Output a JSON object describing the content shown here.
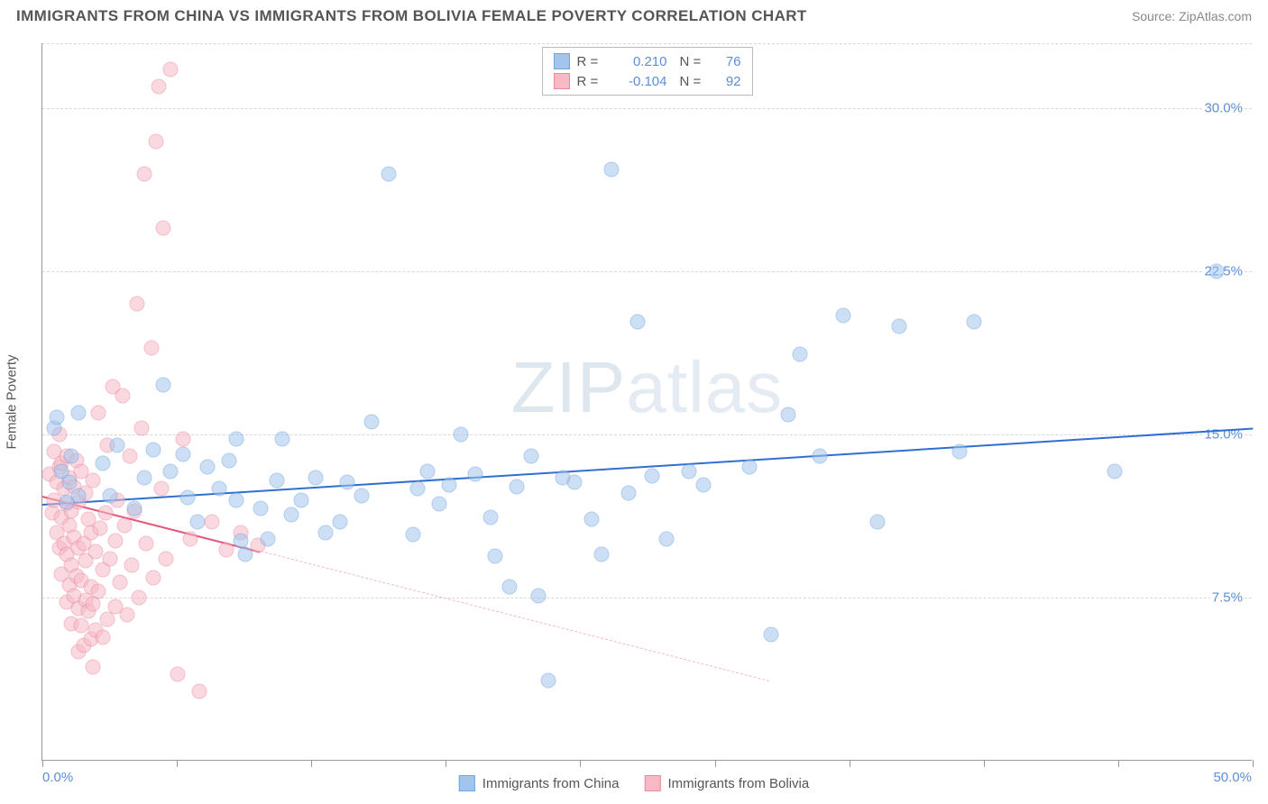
{
  "header": {
    "title": "IMMIGRANTS FROM CHINA VS IMMIGRANTS FROM BOLIVIA FEMALE POVERTY CORRELATION CHART",
    "source": "Source: ZipAtlas.com"
  },
  "watermark": {
    "bold": "ZIP",
    "light": "atlas"
  },
  "chart": {
    "type": "scatter",
    "background_color": "#ffffff",
    "grid_color": "#d8d8d8",
    "axis_color": "#999999",
    "xlim": [
      0,
      50
    ],
    "ylim": [
      0,
      33
    ],
    "x_ticks_minor": [
      0,
      5.56,
      11.11,
      16.67,
      22.22,
      27.78,
      33.33,
      38.89,
      44.44,
      50
    ],
    "x_min_label": "0.0%",
    "x_max_label": "50.0%",
    "y_ticks": [
      {
        "v": 7.5,
        "label": "7.5%"
      },
      {
        "v": 15.0,
        "label": "15.0%"
      },
      {
        "v": 22.5,
        "label": "22.5%"
      },
      {
        "v": 30.0,
        "label": "30.0%"
      }
    ],
    "y_axis_title": "Female Poverty",
    "tick_label_color": "#5b8fd6",
    "tick_label_fontsize": 15,
    "marker_radius": 8.5,
    "marker_opacity": 0.55,
    "series": [
      {
        "id": "china",
        "label": "Immigrants from China",
        "fill": "#a3c5ec",
        "stroke": "#6fa3df",
        "trend": {
          "color": "#2f6fd0",
          "width": 2.5,
          "dash": "solid",
          "y_at_x0": 11.8,
          "y_at_x50": 15.3,
          "draw_to_x": 50
        },
        "trend_ext": null,
        "R": "0.210",
        "N": "76",
        "points": [
          [
            0.5,
            15.3
          ],
          [
            0.8,
            13.3
          ],
          [
            1.0,
            11.9
          ],
          [
            1.1,
            12.8
          ],
          [
            1.2,
            14.0
          ],
          [
            1.5,
            12.2
          ],
          [
            1.5,
            16.0
          ],
          [
            0.6,
            15.8
          ],
          [
            2.5,
            13.7
          ],
          [
            2.8,
            12.2
          ],
          [
            3.1,
            14.5
          ],
          [
            3.8,
            11.6
          ],
          [
            4.2,
            13.0
          ],
          [
            4.6,
            14.3
          ],
          [
            5.0,
            17.3
          ],
          [
            5.3,
            13.3
          ],
          [
            5.8,
            14.1
          ],
          [
            6.0,
            12.1
          ],
          [
            6.4,
            11.0
          ],
          [
            6.8,
            13.5
          ],
          [
            7.3,
            12.5
          ],
          [
            7.7,
            13.8
          ],
          [
            8.2,
            10.1
          ],
          [
            8.0,
            12.0
          ],
          [
            8.0,
            14.8
          ],
          [
            8.4,
            9.5
          ],
          [
            9.0,
            11.6
          ],
          [
            9.3,
            10.2
          ],
          [
            9.7,
            12.9
          ],
          [
            9.9,
            14.8
          ],
          [
            10.3,
            11.3
          ],
          [
            10.7,
            12.0
          ],
          [
            11.3,
            13.0
          ],
          [
            11.7,
            10.5
          ],
          [
            12.3,
            11.0
          ],
          [
            12.6,
            12.8
          ],
          [
            13.2,
            12.2
          ],
          [
            13.6,
            15.6
          ],
          [
            14.3,
            27.0
          ],
          [
            15.3,
            10.4
          ],
          [
            15.5,
            12.5
          ],
          [
            15.9,
            13.3
          ],
          [
            16.4,
            11.8
          ],
          [
            16.8,
            12.7
          ],
          [
            17.3,
            15.0
          ],
          [
            17.9,
            13.2
          ],
          [
            18.5,
            11.2
          ],
          [
            18.7,
            9.4
          ],
          [
            19.3,
            8.0
          ],
          [
            19.6,
            12.6
          ],
          [
            20.2,
            14.0
          ],
          [
            20.5,
            7.6
          ],
          [
            20.9,
            3.7
          ],
          [
            21.5,
            13.0
          ],
          [
            22.0,
            12.8
          ],
          [
            22.7,
            11.1
          ],
          [
            23.1,
            9.5
          ],
          [
            23.5,
            27.2
          ],
          [
            24.2,
            12.3
          ],
          [
            24.6,
            20.2
          ],
          [
            25.2,
            13.1
          ],
          [
            25.8,
            10.2
          ],
          [
            26.7,
            13.3
          ],
          [
            27.3,
            12.7
          ],
          [
            29.2,
            13.5
          ],
          [
            30.1,
            5.8
          ],
          [
            30.8,
            15.9
          ],
          [
            31.3,
            18.7
          ],
          [
            32.1,
            14.0
          ],
          [
            33.1,
            20.5
          ],
          [
            34.5,
            11.0
          ],
          [
            35.4,
            20.0
          ],
          [
            37.9,
            14.2
          ],
          [
            38.5,
            20.2
          ],
          [
            44.3,
            13.3
          ],
          [
            48.5,
            22.5
          ]
        ]
      },
      {
        "id": "bolivia",
        "label": "Immigrants from Bolivia",
        "fill": "#f6b9c6",
        "stroke": "#ea8aa1",
        "trend": {
          "color": "#e05a7a",
          "width": 2.5,
          "dash": "solid",
          "y_at_x0": 12.2,
          "y_at_x50": -2.0,
          "draw_to_x": 9.0
        },
        "trend_ext": {
          "color": "#f3b9c6",
          "width": 1.2,
          "dash": "5,5",
          "from_x": 9.0,
          "to_x": 30.0
        },
        "R": "-0.104",
        "N": "92",
        "points": [
          [
            0.3,
            13.2
          ],
          [
            0.4,
            11.4
          ],
          [
            0.5,
            12.0
          ],
          [
            0.5,
            14.2
          ],
          [
            0.6,
            10.5
          ],
          [
            0.6,
            12.8
          ],
          [
            0.7,
            9.8
          ],
          [
            0.7,
            13.5
          ],
          [
            0.7,
            15.0
          ],
          [
            0.8,
            8.6
          ],
          [
            0.8,
            11.2
          ],
          [
            0.8,
            13.7
          ],
          [
            0.9,
            10.0
          ],
          [
            0.9,
            12.5
          ],
          [
            1.0,
            7.3
          ],
          [
            1.0,
            9.5
          ],
          [
            1.0,
            11.8
          ],
          [
            1.0,
            14.0
          ],
          [
            1.1,
            8.1
          ],
          [
            1.1,
            10.8
          ],
          [
            1.1,
            13.0
          ],
          [
            1.2,
            6.3
          ],
          [
            1.2,
            9.0
          ],
          [
            1.2,
            11.5
          ],
          [
            1.3,
            7.6
          ],
          [
            1.3,
            10.3
          ],
          [
            1.3,
            12.6
          ],
          [
            1.4,
            8.5
          ],
          [
            1.4,
            13.8
          ],
          [
            1.5,
            5.0
          ],
          [
            1.5,
            7.0
          ],
          [
            1.5,
            9.8
          ],
          [
            1.5,
            11.9
          ],
          [
            1.6,
            6.2
          ],
          [
            1.6,
            8.3
          ],
          [
            1.6,
            13.3
          ],
          [
            1.7,
            5.3
          ],
          [
            1.7,
            10.0
          ],
          [
            1.8,
            7.4
          ],
          [
            1.8,
            9.2
          ],
          [
            1.8,
            12.3
          ],
          [
            1.9,
            6.9
          ],
          [
            1.9,
            11.1
          ],
          [
            2.0,
            5.6
          ],
          [
            2.0,
            8.0
          ],
          [
            2.0,
            10.5
          ],
          [
            2.1,
            4.3
          ],
          [
            2.1,
            7.2
          ],
          [
            2.1,
            12.9
          ],
          [
            2.2,
            6.0
          ],
          [
            2.2,
            9.6
          ],
          [
            2.3,
            16.0
          ],
          [
            2.3,
            7.8
          ],
          [
            2.4,
            10.7
          ],
          [
            2.5,
            5.7
          ],
          [
            2.5,
            8.8
          ],
          [
            2.6,
            11.4
          ],
          [
            2.7,
            6.5
          ],
          [
            2.7,
            14.5
          ],
          [
            2.8,
            9.3
          ],
          [
            2.9,
            17.2
          ],
          [
            3.0,
            7.1
          ],
          [
            3.0,
            10.1
          ],
          [
            3.1,
            12.0
          ],
          [
            3.2,
            8.2
          ],
          [
            3.3,
            16.8
          ],
          [
            3.4,
            10.8
          ],
          [
            3.5,
            6.7
          ],
          [
            3.6,
            14.0
          ],
          [
            3.7,
            9.0
          ],
          [
            3.8,
            11.5
          ],
          [
            3.9,
            21.0
          ],
          [
            4.0,
            7.5
          ],
          [
            4.1,
            15.3
          ],
          [
            4.2,
            27.0
          ],
          [
            4.3,
            10.0
          ],
          [
            4.5,
            19.0
          ],
          [
            4.6,
            8.4
          ],
          [
            4.7,
            28.5
          ],
          [
            4.9,
            12.5
          ],
          [
            4.8,
            31.0
          ],
          [
            5.0,
            24.5
          ],
          [
            5.1,
            9.3
          ],
          [
            5.3,
            31.8
          ],
          [
            5.6,
            4.0
          ],
          [
            5.8,
            14.8
          ],
          [
            6.1,
            10.2
          ],
          [
            6.5,
            3.2
          ],
          [
            7.0,
            11.0
          ],
          [
            7.6,
            9.7
          ],
          [
            8.2,
            10.5
          ],
          [
            8.9,
            9.9
          ]
        ]
      }
    ]
  },
  "legend_top": {
    "r_label": "R  =",
    "n_label": "N  ="
  },
  "legend_bottom": {
    "items": [
      "china",
      "bolivia"
    ]
  }
}
